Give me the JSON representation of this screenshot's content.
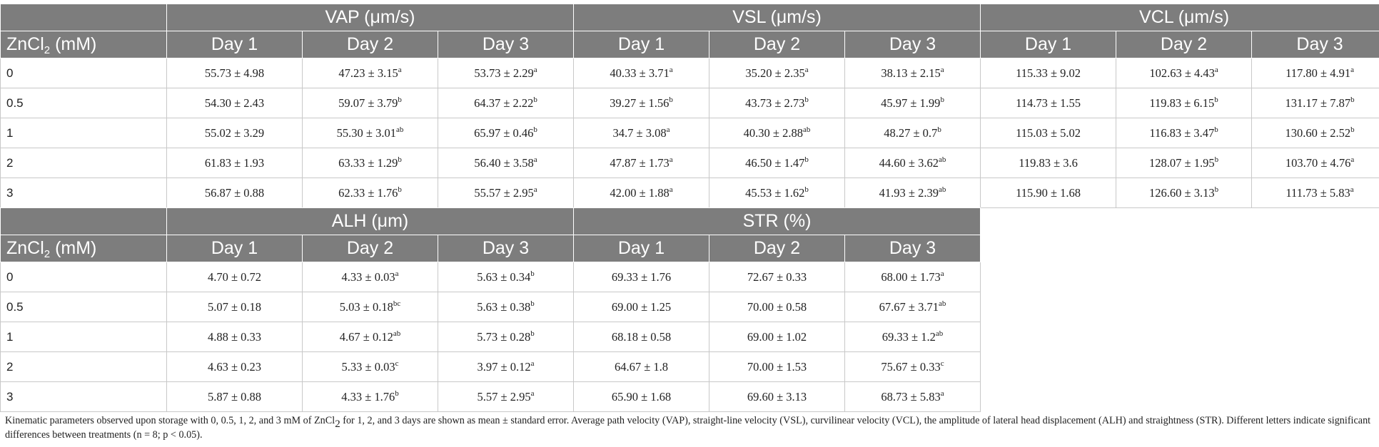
{
  "tables": [
    {
      "row_header": {
        "base": "ZnCl",
        "sub": "2",
        "rest": " (mM)"
      },
      "groups": [
        {
          "name": "VAP (μm/s)",
          "days": [
            "Day 1",
            "Day 2",
            "Day 3"
          ]
        },
        {
          "name": "VSL (μm/s)",
          "days": [
            "Day 1",
            "Day 2",
            "Day 3"
          ]
        },
        {
          "name": "VCL (μm/s)",
          "days": [
            "Day 1",
            "Day 2",
            "Day 3"
          ]
        }
      ],
      "rows": [
        {
          "conc": "0",
          "cells": [
            {
              "v": "55.73 ± 4.98",
              "s": ""
            },
            {
              "v": "47.23 ± 3.15",
              "s": "a"
            },
            {
              "v": "53.73 ± 2.29",
              "s": "a"
            },
            {
              "v": "40.33 ± 3.71",
              "s": "a"
            },
            {
              "v": "35.20 ± 2.35",
              "s": "a"
            },
            {
              "v": "38.13 ± 2.15",
              "s": "a"
            },
            {
              "v": "115.33 ± 9.02",
              "s": ""
            },
            {
              "v": "102.63 ± 4.43",
              "s": "a"
            },
            {
              "v": "117.80 ± 4.91",
              "s": "a"
            }
          ]
        },
        {
          "conc": "0.5",
          "cells": [
            {
              "v": "54.30 ± 2.43",
              "s": ""
            },
            {
              "v": "59.07 ± 3.79",
              "s": "b"
            },
            {
              "v": "64.37 ± 2.22",
              "s": "b"
            },
            {
              "v": "39.27 ± 1.56",
              "s": "b"
            },
            {
              "v": "43.73 ± 2.73",
              "s": "b"
            },
            {
              "v": "45.97 ± 1.99",
              "s": "b"
            },
            {
              "v": "114.73 ± 1.55",
              "s": ""
            },
            {
              "v": "119.83 ± 6.15",
              "s": "b"
            },
            {
              "v": "131.17 ± 7.87",
              "s": "b"
            }
          ]
        },
        {
          "conc": "1",
          "cells": [
            {
              "v": "55.02 ± 3.29",
              "s": ""
            },
            {
              "v": "55.30 ± 3.01",
              "s": "ab"
            },
            {
              "v": "65.97 ± 0.46",
              "s": "b"
            },
            {
              "v": "34.7 ± 3.08",
              "s": "a"
            },
            {
              "v": "40.30 ± 2.88",
              "s": "ab"
            },
            {
              "v": "48.27 ± 0.7",
              "s": "b"
            },
            {
              "v": "115.03 ± 5.02",
              "s": ""
            },
            {
              "v": "116.83 ± 3.47",
              "s": "b"
            },
            {
              "v": "130.60 ± 2.52",
              "s": "b"
            }
          ]
        },
        {
          "conc": "2",
          "cells": [
            {
              "v": "61.83 ± 1.93",
              "s": ""
            },
            {
              "v": "63.33 ± 1.29",
              "s": "b"
            },
            {
              "v": "56.40 ± 3.58",
              "s": "a"
            },
            {
              "v": "47.87 ± 1.73",
              "s": "a"
            },
            {
              "v": "46.50 ± 1.47",
              "s": "b"
            },
            {
              "v": "44.60 ± 3.62",
              "s": "ab"
            },
            {
              "v": "119.83 ± 3.6",
              "s": ""
            },
            {
              "v": "128.07 ± 1.95",
              "s": "b"
            },
            {
              "v": "103.70 ± 4.76",
              "s": "a"
            }
          ]
        },
        {
          "conc": "3",
          "cells": [
            {
              "v": "56.87 ± 0.88",
              "s": ""
            },
            {
              "v": "62.33 ± 1.76",
              "s": "b"
            },
            {
              "v": "55.57 ± 2.95",
              "s": "a"
            },
            {
              "v": "42.00 ± 1.88",
              "s": "a"
            },
            {
              "v": "45.53 ± 1.62",
              "s": "b"
            },
            {
              "v": "41.93 ± 2.39",
              "s": "ab"
            },
            {
              "v": "115.90 ± 1.68",
              "s": ""
            },
            {
              "v": "126.60 ± 3.13",
              "s": "b"
            },
            {
              "v": "111.73 ± 5.83",
              "s": "a"
            }
          ]
        }
      ]
    },
    {
      "row_header": {
        "base": "ZnCl",
        "sub": "2",
        "rest": " (mM)"
      },
      "groups": [
        {
          "name": "ALH (μm)",
          "days": [
            "Day 1",
            "Day 2",
            "Day 3"
          ]
        },
        {
          "name": "STR (%)",
          "days": [
            "Day 1",
            "Day 2",
            "Day 3"
          ]
        }
      ],
      "rows": [
        {
          "conc": "0",
          "cells": [
            {
              "v": "4.70 ± 0.72",
              "s": ""
            },
            {
              "v": "4.33 ± 0.03",
              "s": "a"
            },
            {
              "v": "5.63 ± 0.34",
              "s": "b"
            },
            {
              "v": "69.33 ± 1.76",
              "s": ""
            },
            {
              "v": "72.67 ± 0.33",
              "s": ""
            },
            {
              "v": "68.00 ± 1.73",
              "s": "a"
            }
          ]
        },
        {
          "conc": "0.5",
          "cells": [
            {
              "v": "5.07 ± 0.18",
              "s": ""
            },
            {
              "v": "5.03 ± 0.18",
              "s": "bc"
            },
            {
              "v": "5.63 ± 0.38",
              "s": "b"
            },
            {
              "v": "69.00 ± 1.25",
              "s": ""
            },
            {
              "v": "70.00 ± 0.58",
              "s": ""
            },
            {
              "v": "67.67 ± 3.71",
              "s": "ab"
            }
          ]
        },
        {
          "conc": "1",
          "cells": [
            {
              "v": "4.88 ± 0.33",
              "s": ""
            },
            {
              "v": "4.67 ± 0.12",
              "s": "ab"
            },
            {
              "v": "5.73 ± 0.28",
              "s": "b"
            },
            {
              "v": "68.18 ± 0.58",
              "s": ""
            },
            {
              "v": "69.00 ± 1.02",
              "s": ""
            },
            {
              "v": "69.33 ± 1.2",
              "s": "ab"
            }
          ]
        },
        {
          "conc": "2",
          "cells": [
            {
              "v": "4.63 ± 0.23",
              "s": ""
            },
            {
              "v": "5.33 ± 0.03",
              "s": "c"
            },
            {
              "v": "3.97 ± 0.12",
              "s": "a"
            },
            {
              "v": "64.67 ± 1.8",
              "s": ""
            },
            {
              "v": "70.00 ± 1.53",
              "s": ""
            },
            {
              "v": "75.67 ± 0.33",
              "s": "c"
            }
          ]
        },
        {
          "conc": "3",
          "cells": [
            {
              "v": "5.87 ± 0.88",
              "s": ""
            },
            {
              "v": "4.33 ± 1.76",
              "s": "b"
            },
            {
              "v": "5.57 ± 2.95",
              "s": "a"
            },
            {
              "v": "65.90 ± 1.68",
              "s": ""
            },
            {
              "v": "69.60 ± 3.13",
              "s": ""
            },
            {
              "v": "68.73 ± 5.83",
              "s": "a"
            }
          ]
        }
      ]
    }
  ],
  "caption": {
    "before_sub": "Kinematic parameters observed upon storage with 0, 0.5, 1, 2, and 3 mM of ZnCl",
    "sub": "2",
    "after_sub": " for 1, 2, and 3 days are shown as mean ± standard error. Average path velocity (VAP), straight-line velocity (VSL), curvilinear velocity (VCL), the amplitude of lateral head displacement (ALH) and straightness (STR). Different letters indicate significant differences between treatments (n = 8; p < 0.05)."
  }
}
